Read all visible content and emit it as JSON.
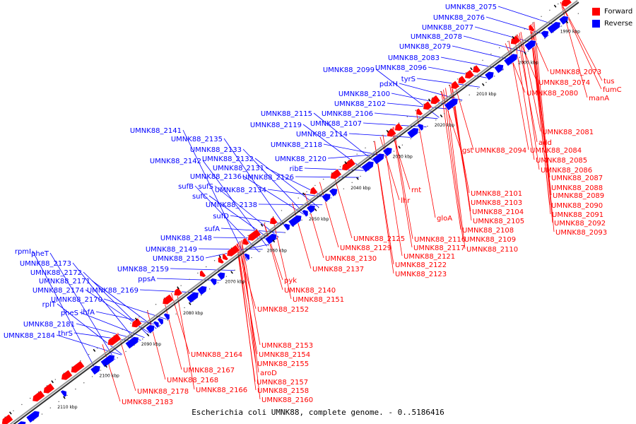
{
  "caption": "Escherichia coli UMNK88, complete genome. - 0..5186416",
  "colors": {
    "forward": "#ff0000",
    "reverse": "#0000ff",
    "axis": "#777777"
  },
  "legend": [
    {
      "label": "Forward",
      "color": "#ff0000"
    },
    {
      "label": "Reverse",
      "color": "#0000ff"
    }
  ],
  "axis_ticks": [
    "1990 kbp",
    "2000 kbp",
    "2010 kbp",
    "2020 kbp",
    "2030 kbp",
    "2040 kbp",
    "2050 kbp",
    "2060 kbp",
    "2070 kbp",
    "2080 kbp",
    "2090 kbp",
    "2100 kbp",
    "2110 kbp",
    "2120 kbp"
  ],
  "reverse_labels": [
    "UMNK88_2075",
    "UMNK88_2076",
    "UMNK88_2077",
    "UMNK88_2078",
    "UMNK88_2079",
    "UMNK88_2083",
    "UMNK88_2099",
    "UMNK88_2096",
    "tyrS",
    "pdxH",
    "UMNK88_2100",
    "UMNK88_2102",
    "UMNK88_2115",
    "UMNK88_2106",
    "UMNK88_2119",
    "UMNK88_2107",
    "UMNK88_2114",
    "UMNK88_2141",
    "UMNK88_2135",
    "UMNK88_2118",
    "UMNK88_2133",
    "UMNK88_2132",
    "UMNK88_2120",
    "UMNK88_2142",
    "UMNK88_2131",
    "ribE",
    "UMNK88_2136",
    "UMNK88_2126",
    "sufB",
    "sufS",
    "UMNK88_2134",
    "sufC",
    "UMNK88_2138",
    "sufD",
    "sufA",
    "UMNK88_2148",
    "UMNK88_2149",
    "UMNK88_2150",
    "rpmI",
    "pheT",
    "UMNK88_2173",
    "UMNK88_2159",
    "UMNK88_2172",
    "ppsA",
    "UMNK88_2171",
    "UMNK88_2174",
    "UMNK88_2169",
    "UMNK88_2170",
    "rplT",
    "ihfA",
    "pheS",
    "UMNK88_2181",
    "thrS",
    "UMNK88_2184"
  ],
  "forward_labels": [
    "UMNK88_2073",
    "tus",
    "UMNK88_2074",
    "fumC",
    "UMNK88_2080",
    "manA",
    "UMNK88_2081",
    "add",
    "gst",
    "UMNK88_2094",
    "UMNK88_2084",
    "UMNK88_2085",
    "UMNK88_2086",
    "UMNK88_2087",
    "UMNK88_2088",
    "UMNK88_2089",
    "rnt",
    "UMNK88_2101",
    "lhr",
    "UMNK88_2103",
    "UMNK88_2090",
    "UMNK88_2104",
    "UMNK88_2091",
    "UMNK88_2105",
    "UMNK88_2092",
    "gloA",
    "UMNK88_2093",
    "UMNK88_2108",
    "UMNK88_2116",
    "UMNK88_2125",
    "UMNK88_2109",
    "UMNK88_2117",
    "UMNK88_2110",
    "UMNK88_2129",
    "UMNK88_2121",
    "UMNK88_2130",
    "UMNK88_2122",
    "UMNK88_2137",
    "UMNK88_2123",
    "pyk",
    "UMNK88_2140",
    "UMNK88_2151",
    "UMNK88_2152",
    "UMNK88_2153",
    "UMNK88_2154",
    "UMNK88_2164",
    "UMNK88_2155",
    "UMNK88_2167",
    "aroD",
    "UMNK88_2168",
    "UMNK88_2157",
    "UMNK88_2166",
    "UMNK88_2158",
    "UMNK88_2178",
    "UMNK88_2160",
    "UMNK88_2183"
  ]
}
